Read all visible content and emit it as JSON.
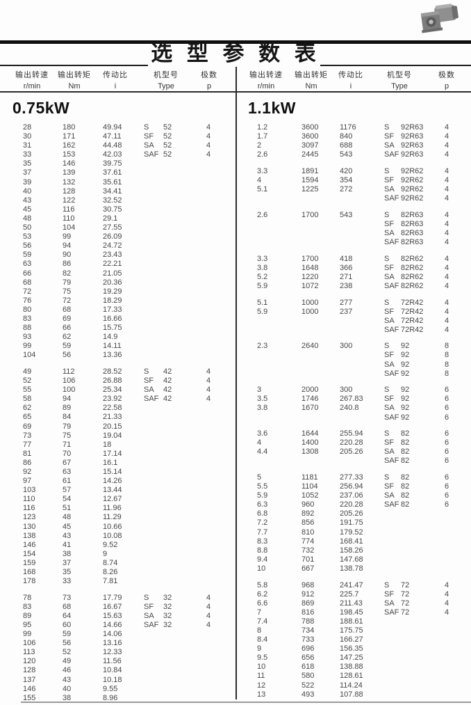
{
  "page": {
    "title": "选 型 参 数 表"
  },
  "icons": {
    "motor_photo": "gear-motor-photo"
  },
  "header_cols": [
    {
      "name": "输出转速",
      "unit": "r/min"
    },
    {
      "name": "输出转矩",
      "unit": "Nm"
    },
    {
      "name": "传动比",
      "unit": "i"
    },
    {
      "name": "机型号",
      "unit": "Type"
    },
    {
      "name": "极数",
      "unit": "p"
    }
  ],
  "left": {
    "power": "0.75kW",
    "groups": [
      {
        "rows": [
          [
            "28",
            "180",
            "49.94",
            "S",
            "52",
            "4"
          ],
          [
            "30",
            "171",
            "47.11",
            "SF",
            "52",
            "4"
          ],
          [
            "31",
            "162",
            "44.48",
            "SA",
            "52",
            "4"
          ],
          [
            "33",
            "153",
            "42.03",
            "SAF",
            "52",
            "4"
          ],
          [
            "35",
            "146",
            "39.75",
            "",
            "",
            ""
          ],
          [
            "37",
            "139",
            "37.61",
            "",
            "",
            ""
          ],
          [
            "39",
            "132",
            "35.61",
            "",
            "",
            ""
          ],
          [
            "40",
            "128",
            "34.41",
            "",
            "",
            ""
          ],
          [
            "43",
            "122",
            "32.52",
            "",
            "",
            ""
          ],
          [
            "45",
            "116",
            "30.75",
            "",
            "",
            ""
          ],
          [
            "48",
            "110",
            "29.1",
            "",
            "",
            ""
          ],
          [
            "50",
            "104",
            "27.55",
            "",
            "",
            ""
          ],
          [
            "53",
            "99",
            "26.09",
            "",
            "",
            ""
          ],
          [
            "56",
            "94",
            "24.72",
            "",
            "",
            ""
          ],
          [
            "59",
            "90",
            "23.43",
            "",
            "",
            ""
          ],
          [
            "63",
            "86",
            "22.21",
            "",
            "",
            ""
          ],
          [
            "66",
            "82",
            "21.05",
            "",
            "",
            ""
          ],
          [
            "68",
            "79",
            "20.36",
            "",
            "",
            ""
          ],
          [
            "72",
            "75",
            "19.29",
            "",
            "",
            ""
          ],
          [
            "76",
            "72",
            "18.29",
            "",
            "",
            ""
          ],
          [
            "80",
            "68",
            "17.33",
            "",
            "",
            ""
          ],
          [
            "83",
            "69",
            "16.66",
            "",
            "",
            ""
          ],
          [
            "88",
            "66",
            "15.75",
            "",
            "",
            ""
          ],
          [
            "93",
            "62",
            "14.9",
            "",
            "",
            ""
          ],
          [
            "99",
            "59",
            "14.11",
            "",
            "",
            ""
          ],
          [
            "104",
            "56",
            "13.36",
            "",
            "",
            ""
          ]
        ]
      },
      {
        "rows": [
          [
            "49",
            "112",
            "28.52",
            "S",
            "42",
            "4"
          ],
          [
            "52",
            "106",
            "26.88",
            "SF",
            "42",
            "4"
          ],
          [
            "55",
            "100",
            "25.34",
            "SA",
            "42",
            "4"
          ],
          [
            "58",
            "94",
            "23.92",
            "SAF",
            "42",
            "4"
          ],
          [
            "62",
            "89",
            "22.58",
            "",
            "",
            ""
          ],
          [
            "65",
            "84",
            "21.33",
            "",
            "",
            ""
          ],
          [
            "69",
            "79",
            "20.15",
            "",
            "",
            ""
          ],
          [
            "73",
            "75",
            "19.04",
            "",
            "",
            ""
          ],
          [
            "77",
            "71",
            "18",
            "",
            "",
            ""
          ],
          [
            "81",
            "70",
            "17.14",
            "",
            "",
            ""
          ],
          [
            "86",
            "67",
            "16.1",
            "",
            "",
            ""
          ],
          [
            "92",
            "63",
            "15.14",
            "",
            "",
            ""
          ],
          [
            "97",
            "61",
            "14.26",
            "",
            "",
            ""
          ],
          [
            "103",
            "57",
            "13.44",
            "",
            "",
            ""
          ],
          [
            "110",
            "54",
            "12.67",
            "",
            "",
            ""
          ],
          [
            "116",
            "51",
            "11.96",
            "",
            "",
            ""
          ],
          [
            "123",
            "48",
            "11.29",
            "",
            "",
            ""
          ],
          [
            "130",
            "45",
            "10.66",
            "",
            "",
            ""
          ],
          [
            "138",
            "43",
            "10.08",
            "",
            "",
            ""
          ],
          [
            "146",
            "41",
            "9.52",
            "",
            "",
            ""
          ],
          [
            "154",
            "38",
            "9",
            "",
            "",
            ""
          ],
          [
            "159",
            "37",
            "8.74",
            "",
            "",
            ""
          ],
          [
            "168",
            "35",
            "8.26",
            "",
            "",
            ""
          ],
          [
            "178",
            "33",
            "7.81",
            "",
            "",
            ""
          ]
        ]
      },
      {
        "rows": [
          [
            "78",
            "73",
            "17.79",
            "S",
            "32",
            "4"
          ],
          [
            "83",
            "68",
            "16.67",
            "SF",
            "32",
            "4"
          ],
          [
            "89",
            "64",
            "15.63",
            "SA",
            "32",
            "4"
          ],
          [
            "95",
            "60",
            "14.66",
            "SAF",
            "32",
            "4"
          ],
          [
            "99",
            "59",
            "14.06",
            "",
            "",
            ""
          ],
          [
            "106",
            "56",
            "13.16",
            "",
            "",
            ""
          ],
          [
            "113",
            "52",
            "12.33",
            "",
            "",
            ""
          ],
          [
            "120",
            "49",
            "11.56",
            "",
            "",
            ""
          ],
          [
            "128",
            "46",
            "10.84",
            "",
            "",
            ""
          ],
          [
            "137",
            "43",
            "10.18",
            "",
            "",
            ""
          ],
          [
            "146",
            "40",
            "9.55",
            "",
            "",
            ""
          ],
          [
            "155",
            "38",
            "8.96",
            "",
            "",
            ""
          ]
        ]
      }
    ]
  },
  "right": {
    "power": "1.1kW",
    "groups": [
      {
        "rows": [
          [
            "1.2",
            "3600",
            "1176",
            "S",
            "92R63",
            "4"
          ],
          [
            "1.7",
            "3600",
            "840",
            "SF",
            "92R63",
            "4"
          ],
          [
            "2",
            "3097",
            "688",
            "SA",
            "92R63",
            "4"
          ],
          [
            "2.6",
            "2445",
            "543",
            "SAF",
            "92R63",
            "4"
          ]
        ]
      },
      {
        "rows": [
          [
            "3.3",
            "1891",
            "420",
            "S",
            "92R62",
            "4"
          ],
          [
            "4",
            "1594",
            "354",
            "SF",
            "92R62",
            "4"
          ],
          [
            "5.1",
            "1225",
            "272",
            "SA",
            "92R62",
            "4"
          ],
          [
            "",
            "",
            "",
            "SAF",
            "92R62",
            "4"
          ]
        ]
      },
      {
        "rows": [
          [
            "2.6",
            "1700",
            "543",
            "S",
            "82R63",
            "4"
          ],
          [
            "",
            "",
            "",
            "SF",
            "82R63",
            "4"
          ],
          [
            "",
            "",
            "",
            "SA",
            "82R63",
            "4"
          ],
          [
            "",
            "",
            "",
            "SAF",
            "82R63",
            "4"
          ]
        ]
      },
      {
        "rows": [
          [
            "3.3",
            "1700",
            "418",
            "S",
            "82R62",
            "4"
          ],
          [
            "3.8",
            "1648",
            "366",
            "SF",
            "82R62",
            "4"
          ],
          [
            "5.2",
            "1220",
            "271",
            "SA",
            "82R62",
            "4"
          ],
          [
            "5.9",
            "1072",
            "238",
            "SAF",
            "82R62",
            "4"
          ]
        ]
      },
      {
        "rows": [
          [
            "5.1",
            "1000",
            "277",
            "S",
            "72R42",
            "4"
          ],
          [
            "5.9",
            "1000",
            "237",
            "SF",
            "72R42",
            "4"
          ],
          [
            "",
            "",
            "",
            "SA",
            "72R42",
            "4"
          ],
          [
            "",
            "",
            "",
            "SAF",
            "72R42",
            "4"
          ]
        ]
      },
      {
        "rows": [
          [
            "2.3",
            "2640",
            "300",
            "S",
            "92",
            "8"
          ],
          [
            "",
            "",
            "",
            "SF",
            "92",
            "8"
          ],
          [
            "",
            "",
            "",
            "SA",
            "92",
            "8"
          ],
          [
            "",
            "",
            "",
            "SAF",
            "92",
            "8"
          ]
        ]
      },
      {
        "rows": [
          [
            "3",
            "2000",
            "300",
            "S",
            "92",
            "6"
          ],
          [
            "3.5",
            "1746",
            "267.83",
            "SF",
            "92",
            "6"
          ],
          [
            "3.8",
            "1670",
            "240.8",
            "SA",
            "92",
            "6"
          ],
          [
            "",
            "",
            "",
            "SAF",
            "92",
            "6"
          ]
        ]
      },
      {
        "rows": [
          [
            "3.6",
            "1644",
            "255.94",
            "S",
            "82",
            "6"
          ],
          [
            "4",
            "1400",
            "220.28",
            "SF",
            "82",
            "6"
          ],
          [
            "4.4",
            "1308",
            "205.26",
            "SA",
            "82",
            "6"
          ],
          [
            "",
            "",
            "",
            "SAF",
            "82",
            "6"
          ]
        ]
      },
      {
        "rows": [
          [
            "5",
            "1181",
            "277.33",
            "S",
            "82",
            "6"
          ],
          [
            "5.5",
            "1104",
            "256.94",
            "SF",
            "82",
            "6"
          ],
          [
            "5.9",
            "1052",
            "237.06",
            "SA",
            "82",
            "6"
          ],
          [
            "6.3",
            "960",
            "220.28",
            "SAF",
            "82",
            "6"
          ],
          [
            "6.8",
            "892",
            "205.26",
            "",
            "",
            ""
          ],
          [
            "7.2",
            "856",
            "191.75",
            "",
            "",
            ""
          ],
          [
            "7.7",
            "810",
            "179.52",
            "",
            "",
            ""
          ],
          [
            "8.3",
            "774",
            "168.41",
            "",
            "",
            ""
          ],
          [
            "8.8",
            "732",
            "158.26",
            "",
            "",
            ""
          ],
          [
            "9.4",
            "701",
            "147.68",
            "",
            "",
            ""
          ],
          [
            "10",
            "667",
            "138.78",
            "",
            "",
            ""
          ]
        ]
      },
      {
        "rows": [
          [
            "5.8",
            "968",
            "241.47",
            "S",
            "72",
            "4"
          ],
          [
            "6.2",
            "912",
            "225.7",
            "SF",
            "72",
            "4"
          ],
          [
            "6.6",
            "869",
            "211.43",
            "SA",
            "72",
            "4"
          ],
          [
            "7",
            "816",
            "198.45",
            "SAF",
            "72",
            "4"
          ],
          [
            "7.4",
            "788",
            "188.61",
            "",
            "",
            ""
          ],
          [
            "8",
            "734",
            "175.75",
            "",
            "",
            ""
          ],
          [
            "8.4",
            "733",
            "166.27",
            "",
            "",
            ""
          ],
          [
            "9",
            "696",
            "156.35",
            "",
            "",
            ""
          ],
          [
            "9.5",
            "656",
            "147.25",
            "",
            "",
            ""
          ],
          [
            "10",
            "618",
            "138.88",
            "",
            "",
            ""
          ],
          [
            "11",
            "580",
            "128.61",
            "",
            "",
            ""
          ],
          [
            "12",
            "522",
            "114.24",
            "",
            "",
            ""
          ],
          [
            "13",
            "493",
            "107.88",
            "",
            "",
            ""
          ]
        ]
      }
    ]
  }
}
